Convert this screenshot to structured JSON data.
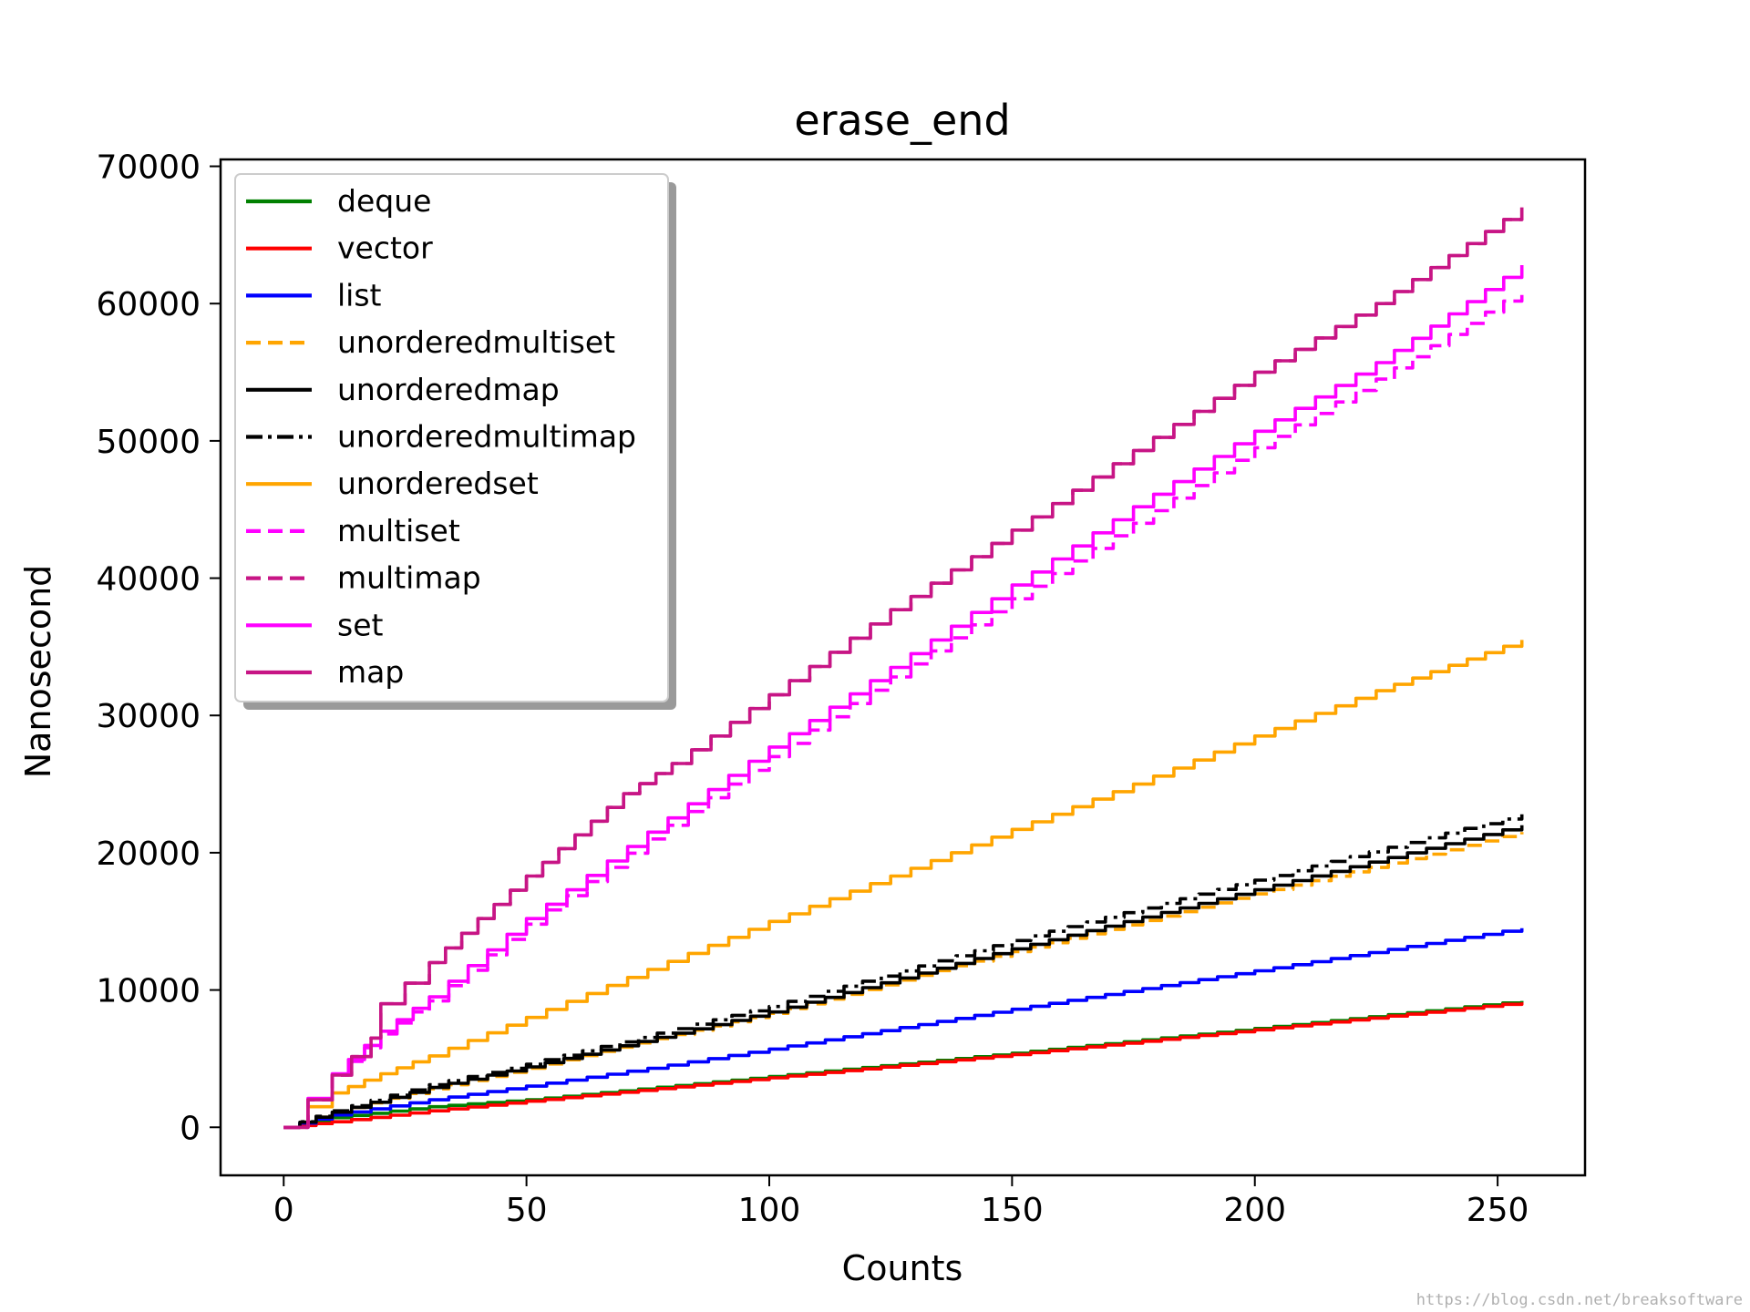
{
  "chart_data": {
    "type": "line",
    "title": "erase_end",
    "xlabel": "Counts",
    "ylabel": "Nanosecond",
    "xlim": [
      -13,
      268
    ],
    "ylim": [
      -3500,
      70500
    ],
    "xticks": [
      0,
      50,
      100,
      150,
      200,
      250
    ],
    "yticks": [
      0,
      10000,
      20000,
      30000,
      40000,
      50000,
      60000,
      70000
    ],
    "grid": false,
    "legend_position": "top-left",
    "series": [
      {
        "name": "deque",
        "color": "#008000",
        "dash": "solid",
        "x": [
          0,
          10,
          30,
          50,
          100,
          150,
          200,
          255
        ],
        "y": [
          0,
          700,
          1500,
          2000,
          3700,
          5400,
          7200,
          9200
        ]
      },
      {
        "name": "vector",
        "color": "#ff0000",
        "dash": "solid",
        "x": [
          0,
          10,
          30,
          50,
          100,
          150,
          200,
          255
        ],
        "y": [
          0,
          400,
          1200,
          1900,
          3600,
          5300,
          7100,
          9100
        ]
      },
      {
        "name": "list",
        "color": "#0000ff",
        "dash": "solid",
        "x": [
          0,
          10,
          30,
          50,
          75,
          100,
          150,
          200,
          255
        ],
        "y": [
          0,
          900,
          2000,
          3000,
          4300,
          5700,
          8600,
          11400,
          14500
        ]
      },
      {
        "name": "unorderedmultiset",
        "color": "#ffa500",
        "dash": "dashed",
        "x": [
          0,
          10,
          30,
          50,
          100,
          150,
          200,
          255
        ],
        "y": [
          0,
          1100,
          2800,
          4300,
          8300,
          12800,
          17000,
          21500
        ]
      },
      {
        "name": "unorderedmap",
        "color": "#000000",
        "dash": "solid",
        "x": [
          0,
          10,
          30,
          50,
          100,
          150,
          200,
          255
        ],
        "y": [
          0,
          1100,
          2900,
          4400,
          8400,
          13000,
          17300,
          22000
        ]
      },
      {
        "name": "unorderedmultimap",
        "color": "#000000",
        "dash": "dashdot",
        "x": [
          0,
          10,
          30,
          50,
          100,
          150,
          200,
          255
        ],
        "y": [
          0,
          1200,
          3100,
          4600,
          8800,
          13600,
          18000,
          22800
        ]
      },
      {
        "name": "unorderedset",
        "color": "#ffa500",
        "dash": "solid",
        "x": [
          0,
          5,
          10,
          20,
          30,
          50,
          75,
          100,
          125,
          150,
          175,
          200,
          225,
          255
        ],
        "y": [
          0,
          1500,
          2500,
          3900,
          5200,
          8000,
          11500,
          15000,
          18300,
          21700,
          25000,
          28500,
          31800,
          35500
        ]
      },
      {
        "name": "multiset",
        "color": "#ff00ff",
        "dash": "dashed",
        "x": [
          0,
          5,
          10,
          20,
          30,
          50,
          75,
          100,
          125,
          150,
          175,
          200,
          225,
          255
        ],
        "y": [
          0,
          2000,
          3800,
          6800,
          9200,
          14800,
          21000,
          27000,
          32800,
          38500,
          44000,
          49500,
          54500,
          61000
        ]
      },
      {
        "name": "multimap",
        "color": "#c71585",
        "dash": "dashed",
        "x": [
          0,
          5,
          10,
          18,
          20,
          25,
          30,
          40,
          50,
          60,
          70,
          80,
          100,
          125,
          150,
          175,
          200,
          225,
          255
        ],
        "y": [
          0,
          2000,
          3800,
          6500,
          9000,
          10500,
          12000,
          15200,
          18300,
          21300,
          24300,
          26500,
          31500,
          37700,
          43500,
          49300,
          55000,
          60000,
          67000
        ]
      },
      {
        "name": "set",
        "color": "#ff00ff",
        "dash": "solid",
        "x": [
          0,
          5,
          10,
          20,
          30,
          50,
          75,
          100,
          125,
          150,
          175,
          200,
          225,
          255
        ],
        "y": [
          0,
          2100,
          3900,
          7000,
          9500,
          15200,
          21500,
          27700,
          33500,
          39500,
          45200,
          50700,
          55700,
          62800
        ]
      },
      {
        "name": "map",
        "color": "#c71585",
        "dash": "solid",
        "x": [
          0,
          5,
          10,
          18,
          20,
          25,
          30,
          40,
          50,
          60,
          70,
          80,
          100,
          125,
          150,
          175,
          200,
          225,
          255
        ],
        "y": [
          0,
          2000,
          3800,
          6500,
          9000,
          10500,
          12000,
          15200,
          18300,
          21300,
          24300,
          26500,
          31500,
          37700,
          43500,
          49300,
          55000,
          60000,
          67000
        ]
      }
    ]
  },
  "watermark": "https://blog.csdn.net/breaksoftware"
}
